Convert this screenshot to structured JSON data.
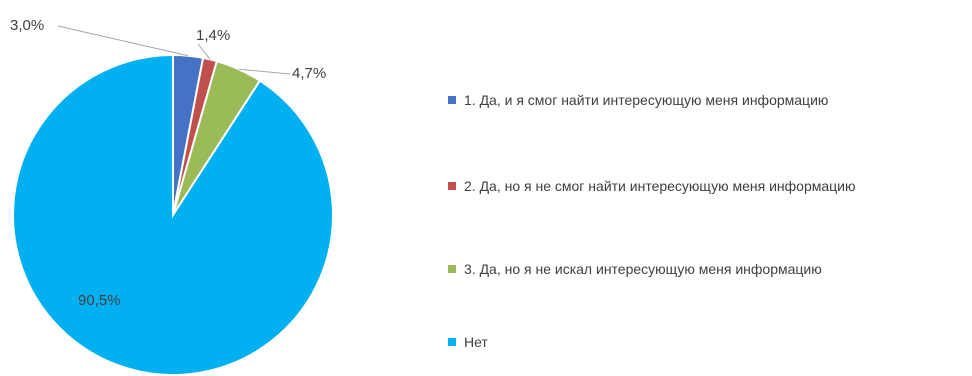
{
  "chart_data": {
    "type": "pie",
    "title": "",
    "slices": [
      {
        "label": "1. Да, и я смог найти интересующую меня информацию",
        "value": 3.0,
        "display": "3,0%",
        "color": "#4472C4"
      },
      {
        "label": "2. Да, но я не смог найти интересующую меня информацию",
        "value": 1.4,
        "display": "1,4%",
        "color": "#C0504D"
      },
      {
        "label": "3. Да, но я не искал интересующую меня информацию",
        "value": 4.7,
        "display": "4,7%",
        "color": "#9BBB59"
      },
      {
        "label": "Нет",
        "value": 90.5,
        "display": "90,5%",
        "color": "#00B0F0"
      }
    ],
    "legend_position": "right",
    "start_angle_deg": 0,
    "direction": "clockwise"
  }
}
